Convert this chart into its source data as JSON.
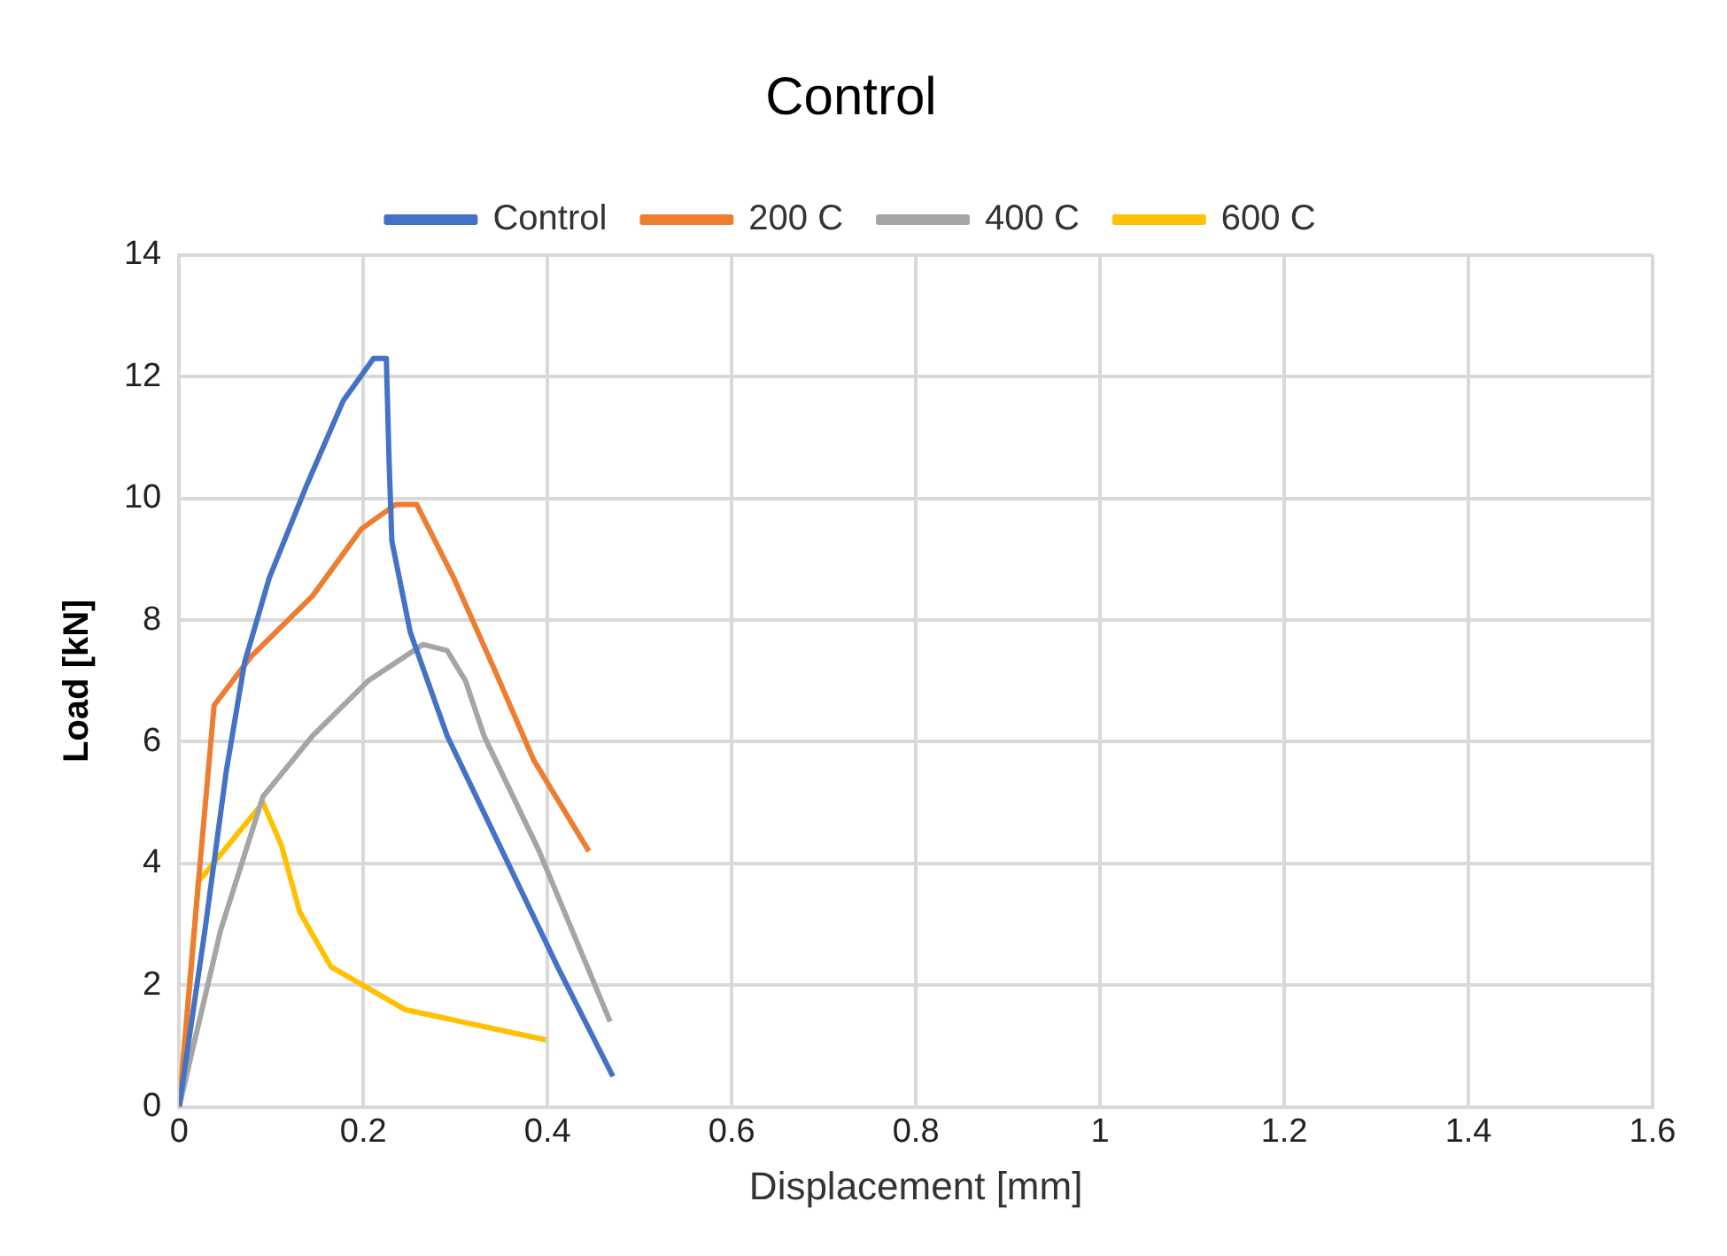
{
  "chart_data": {
    "type": "line",
    "title": "Control",
    "xlabel": "Displacement [mm]",
    "ylabel": "Load [kN]",
    "xlim": [
      0,
      1.6
    ],
    "xticks": [
      0,
      0.2,
      0.4,
      0.6,
      0.8,
      1,
      1.2,
      1.4,
      1.6
    ],
    "ylim": [
      0,
      14
    ],
    "yticks": [
      0,
      2,
      4,
      6,
      8,
      10,
      12,
      14
    ],
    "grid": true,
    "legend": "top",
    "marker": "none",
    "line_style": "solid",
    "series": [
      {
        "name": "Control",
        "color": "#4472c4",
        "x": [
          0,
          0.028,
          0.051,
          0.071,
          0.098,
          0.138,
          0.178,
          0.211,
          0.225,
          0.228,
          0.231,
          0.251,
          0.291,
          0.351,
          0.411,
          0.471
        ],
        "values": [
          0,
          2.9,
          5.5,
          7.3,
          8.7,
          10.2,
          11.6,
          12.3,
          12.3,
          10.6,
          9.3,
          7.8,
          6.1,
          4.2,
          2.3,
          0.5
        ]
      },
      {
        "name": "200 C",
        "color": "#ed7d31",
        "x": [
          0,
          0.021,
          0.038,
          0.078,
          0.145,
          0.198,
          0.235,
          0.258,
          0.298,
          0.345,
          0.385,
          0.445
        ],
        "values": [
          0,
          3.7,
          6.6,
          7.4,
          8.4,
          9.5,
          9.9,
          9.9,
          8.7,
          7.1,
          5.7,
          4.2
        ]
      },
      {
        "name": "400 C",
        "color": "#a5a5a5",
        "x": [
          0,
          0.045,
          0.091,
          0.145,
          0.205,
          0.265,
          0.291,
          0.311,
          0.331,
          0.391,
          0.468
        ],
        "values": [
          0,
          2.9,
          5.1,
          6.1,
          7.0,
          7.6,
          7.5,
          7.0,
          6.1,
          4.2,
          1.4
        ]
      },
      {
        "name": "600 C",
        "color": "#ffc000",
        "x": [
          0,
          0.021,
          0.091,
          0.111,
          0.131,
          0.165,
          0.245,
          0.398
        ],
        "values": [
          0,
          3.7,
          5.0,
          4.3,
          3.2,
          2.3,
          1.6,
          1.1
        ]
      }
    ]
  }
}
